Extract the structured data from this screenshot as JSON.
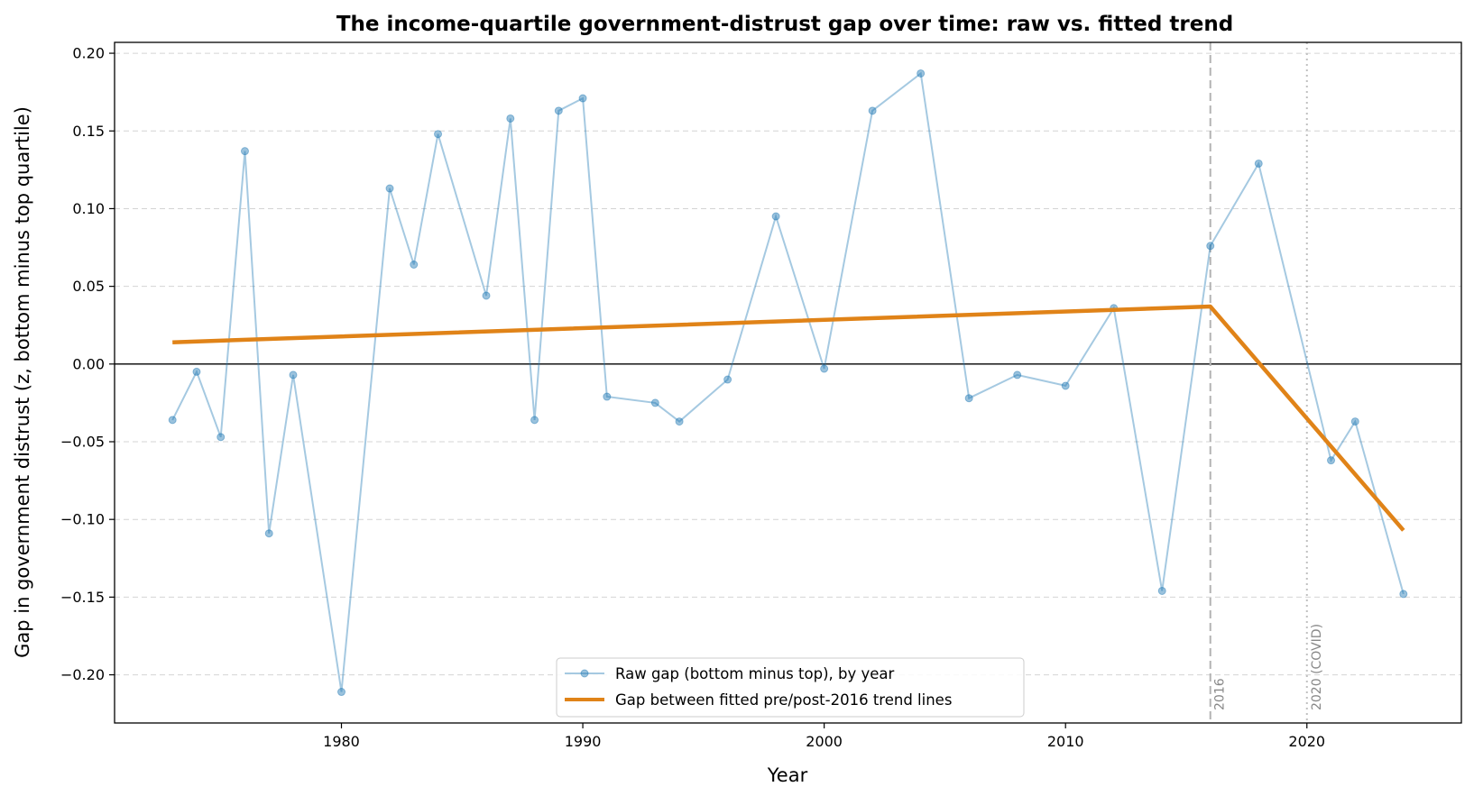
{
  "chart_data": {
    "type": "line",
    "title": "The income-quartile government-distrust gap over time: raw vs. fitted trend",
    "xlabel": "Year",
    "ylabel": "Gap in government distrust (z, bottom minus top quartile)",
    "xlim": [
      1970.6,
      2026.4
    ],
    "ylim": [
      -0.231,
      0.207
    ],
    "xticks": [
      1980,
      1990,
      2000,
      2010,
      2020
    ],
    "yticks": [
      -0.2,
      -0.15,
      -0.1,
      -0.05,
      0.0,
      0.05,
      0.1,
      0.15,
      0.2
    ],
    "ytick_labels": [
      "−0.20",
      "−0.15",
      "−0.10",
      "−0.05",
      "0.00",
      "0.05",
      "0.10",
      "0.15",
      "0.20"
    ],
    "grid": "horizontal dashed",
    "legend_position": "lower-center",
    "series": [
      {
        "name": "Raw gap (bottom minus top), by year",
        "style": "line-with-markers",
        "color": "#1f77b4",
        "x": [
          1973,
          1974,
          1975,
          1976,
          1977,
          1978,
          1980,
          1982,
          1983,
          1984,
          1986,
          1987,
          1988,
          1989,
          1990,
          1991,
          1993,
          1994,
          1996,
          1998,
          2000,
          2002,
          2004,
          2006,
          2008,
          2010,
          2012,
          2014,
          2016,
          2018,
          2021,
          2022,
          2024
        ],
        "y": [
          -0.036,
          -0.005,
          -0.047,
          0.137,
          -0.109,
          -0.007,
          -0.211,
          0.113,
          0.064,
          0.148,
          0.044,
          0.158,
          -0.036,
          0.163,
          0.171,
          -0.021,
          -0.025,
          -0.037,
          -0.01,
          0.095,
          -0.003,
          0.163,
          0.187,
          -0.022,
          -0.007,
          -0.014,
          0.036,
          -0.146,
          0.076,
          0.129,
          -0.062,
          -0.037,
          -0.148
        ]
      },
      {
        "name": "Gap between fitted pre/post-2016 trend lines",
        "style": "line",
        "color": "#e08318",
        "x": [
          1973,
          2016,
          2024
        ],
        "y": [
          0.014,
          0.037,
          -0.107
        ]
      }
    ],
    "reference_lines": [
      {
        "orientation": "horizontal",
        "value": 0,
        "style": "solid",
        "color": "#000000"
      },
      {
        "orientation": "vertical",
        "value": 2016,
        "style": "dashed",
        "color": "#b3b3b3",
        "label": "2016"
      },
      {
        "orientation": "vertical",
        "value": 2020,
        "style": "dotted",
        "color": "#c0c0c0",
        "label": "2020 (COVID)"
      }
    ]
  }
}
